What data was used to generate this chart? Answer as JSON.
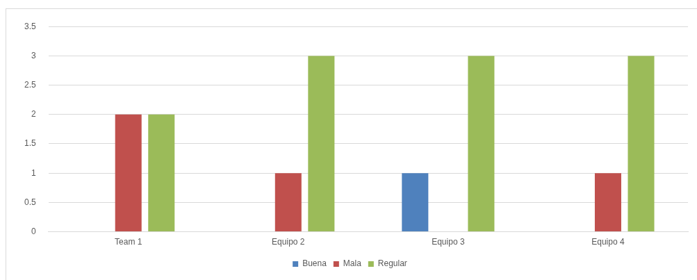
{
  "chart_data": {
    "type": "bar",
    "categories": [
      "Team 1",
      "Equipo 2",
      "Equipo 3",
      "Equipo 4"
    ],
    "series": [
      {
        "name": "Buena",
        "color": "#4f81bd",
        "values": [
          0,
          0,
          1,
          0
        ]
      },
      {
        "name": "Mala",
        "color": "#c0504d",
        "values": [
          2,
          1,
          0,
          1
        ]
      },
      {
        "name": "Regular",
        "color": "#9bbb59",
        "values": [
          2,
          3,
          3,
          3
        ]
      }
    ],
    "ylim": [
      0,
      3.5
    ],
    "yticks": [
      0,
      0.5,
      1,
      1.5,
      2,
      2.5,
      3,
      3.5
    ],
    "grid": "y",
    "legend": "bottom"
  }
}
